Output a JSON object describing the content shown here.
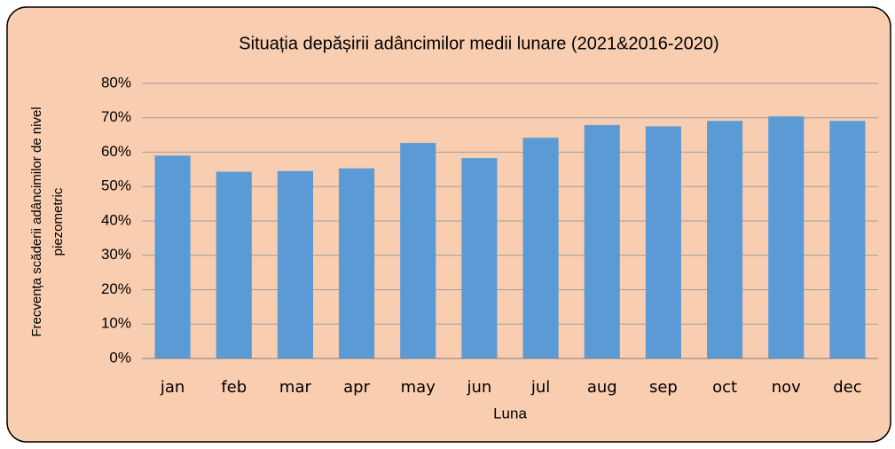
{
  "chart_data": {
    "type": "bar",
    "title": "Situația depășirii adâncimilor medii lunare (2021&2016-2020)",
    "x_label": "Luna",
    "y_label": [
      "Frecvența scăderii adâncimilor de nivel",
      "piezometric"
    ],
    "categories": [
      "jan",
      "feb",
      "mar",
      "apr",
      "may",
      "jun",
      "jul",
      "aug",
      "sep",
      "oct",
      "nov",
      "dec"
    ],
    "values": [
      59,
      54.3,
      54.5,
      55.3,
      62.7,
      58.3,
      64.2,
      67.9,
      67.5,
      69.1,
      70.4,
      69.1
    ],
    "color": "#5b9bd5",
    "ylim": [
      0,
      80
    ],
    "yticks": [
      {
        "value": 0,
        "label": "0%"
      },
      {
        "value": 10,
        "label": "10%"
      },
      {
        "value": 20,
        "label": "20%"
      },
      {
        "value": 30,
        "label": "30%"
      },
      {
        "value": 40,
        "label": "40%"
      },
      {
        "value": 50,
        "label": "50%"
      },
      {
        "value": 60,
        "label": "60%"
      },
      {
        "value": 70,
        "label": "70%"
      },
      {
        "value": 80,
        "label": "80%"
      }
    ],
    "grid": true
  }
}
